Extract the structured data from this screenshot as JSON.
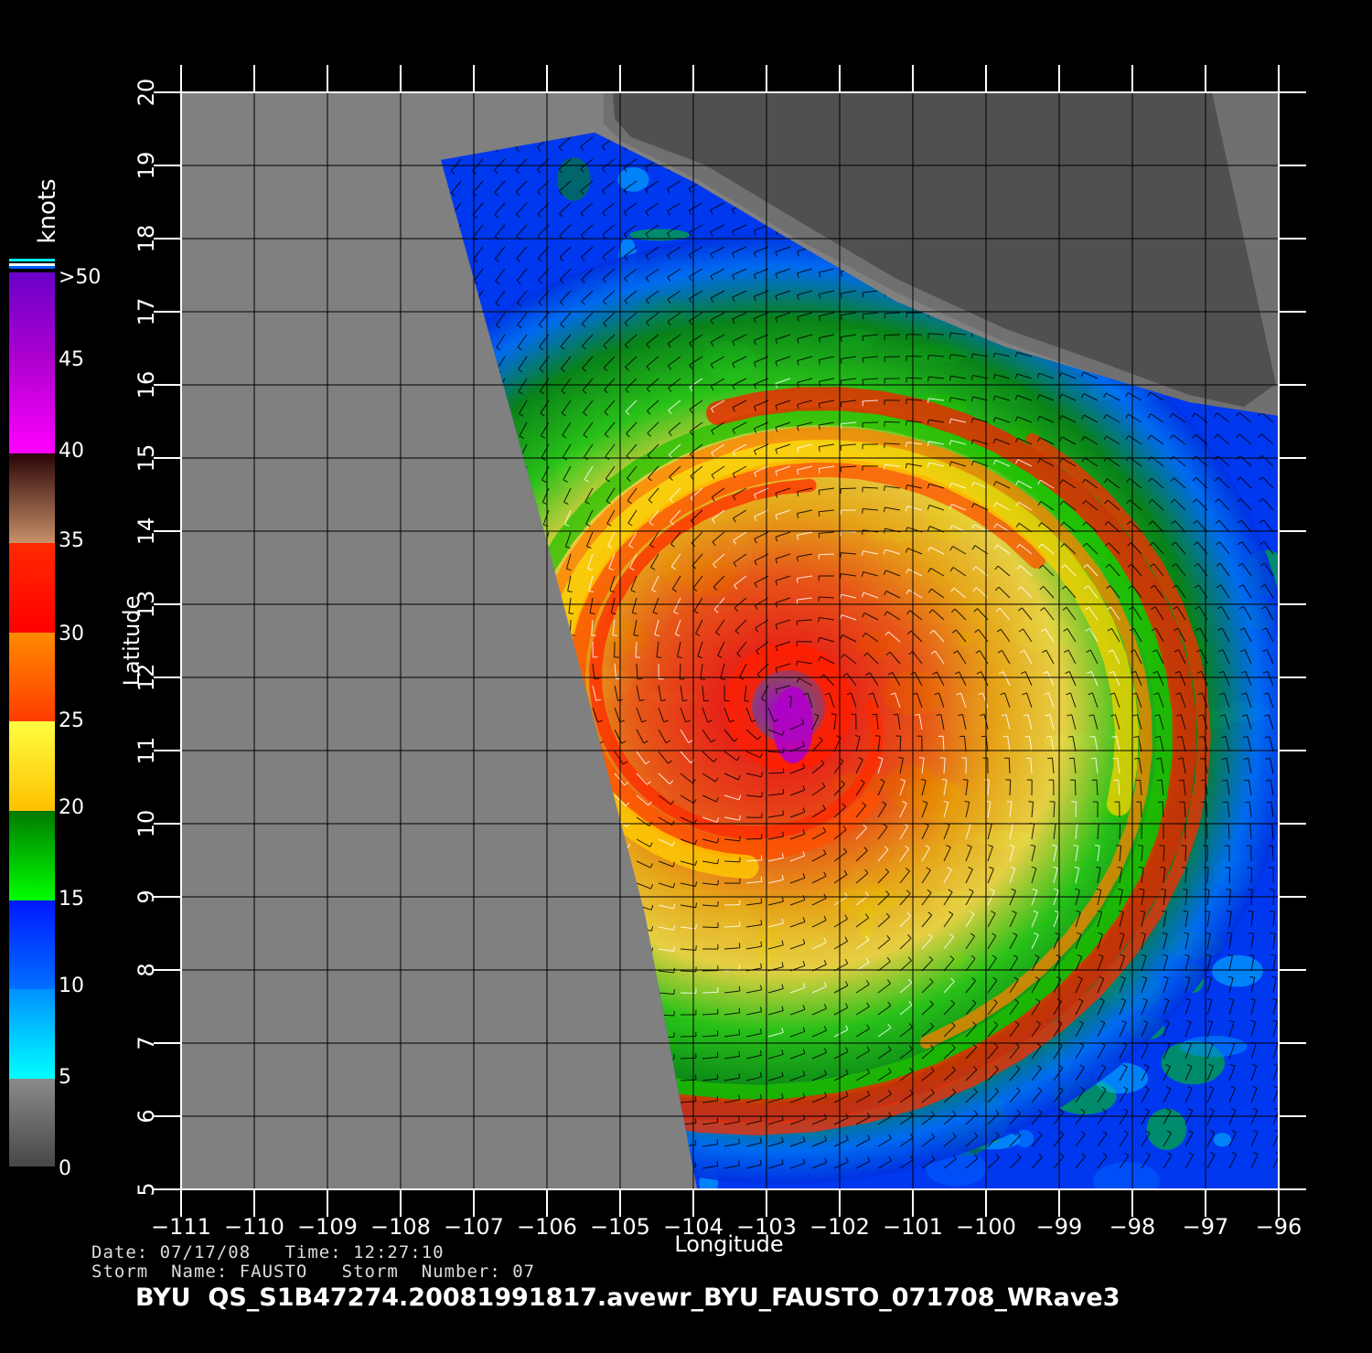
{
  "legend": {
    "title": "knots",
    "ticks": [
      "0",
      "5",
      "10",
      "15",
      "20",
      "25",
      "30",
      "35",
      "40",
      "45",
      ">50"
    ],
    "colors": [
      "#444444",
      "#8a8a8a",
      "#00ffff",
      "#0078ff",
      "#0018ff",
      "#008a00",
      "#00ff00",
      "#ffff3c",
      "#ffc000",
      "#ff8a00",
      "#ff3a00",
      "#ff1000",
      "#c88060",
      "#7a3020",
      "#3a0a0a",
      "#ff00ff",
      "#b000c8",
      "#7000c8"
    ]
  },
  "axes": {
    "xlabel": "Longitude",
    "ylabel": "Latitude",
    "xticks": [
      "−111",
      "−110",
      "−109",
      "−108",
      "−107",
      "−106",
      "−105",
      "−104",
      "−103",
      "−102",
      "−101",
      "−100",
      "−99",
      "−98",
      "−97",
      "−96"
    ],
    "yticks": [
      "5",
      "6",
      "7",
      "8",
      "9",
      "10",
      "11",
      "12",
      "13",
      "14",
      "15",
      "16",
      "17",
      "18",
      "19",
      "20"
    ],
    "xlim": [
      -111,
      -96
    ],
    "ylim": [
      5,
      20
    ]
  },
  "storm": {
    "center_lon": -102.7,
    "center_lat": 11.6
  },
  "meta": {
    "date_line": "Date: 07/17/08   Time: 12:27:10",
    "storm_line": "Storm  Name: FAUSTO   Storm  Number: 07"
  },
  "footer": "BYU  QS_S1B47274.20081991817.avewr_BYU_FAUSTO_071708_WRave3",
  "colors": {
    "no_data": "#808080",
    "land": "#505050",
    "land_edge": "#707070"
  }
}
